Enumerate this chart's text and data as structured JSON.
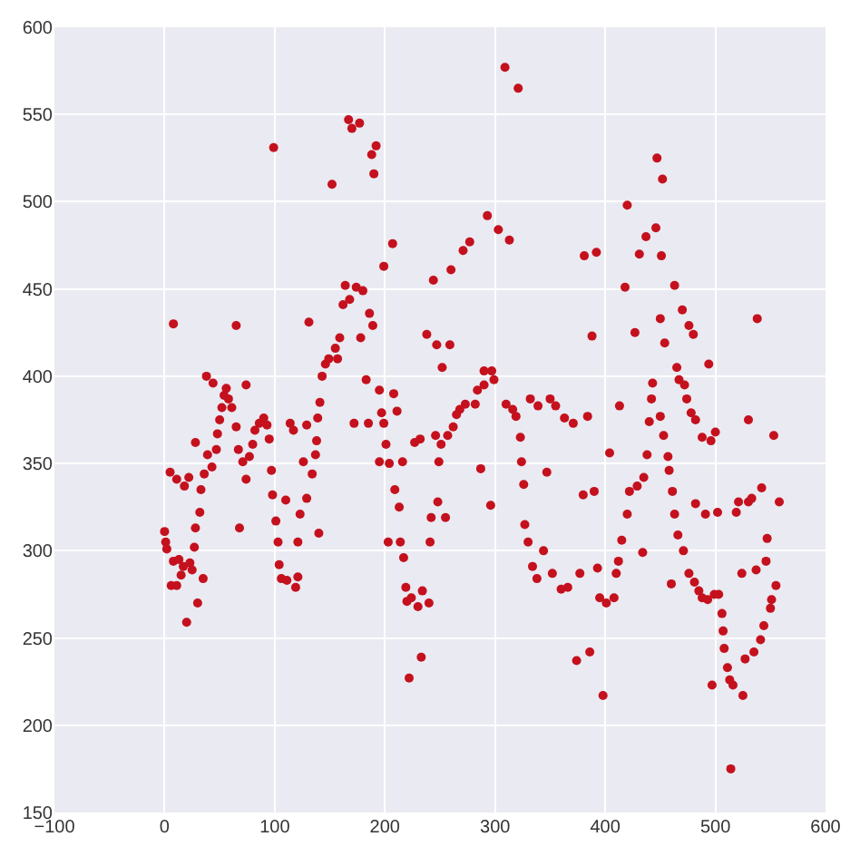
{
  "chart_data": {
    "type": "scatter",
    "x": [
      0,
      1,
      2,
      5,
      6,
      8,
      8,
      11,
      11,
      13,
      15,
      17,
      18,
      20,
      22,
      23,
      25,
      27,
      28,
      28,
      30,
      32,
      33,
      35,
      36,
      38,
      39,
      43,
      44,
      47,
      48,
      50,
      52,
      54,
      56,
      58,
      61,
      65,
      65,
      68,
      67,
      71,
      74,
      74,
      77,
      80,
      82,
      86,
      90,
      93,
      95,
      97,
      98,
      99,
      101,
      103,
      104,
      106,
      110,
      111,
      114,
      117,
      119,
      121,
      121,
      123,
      126,
      129,
      129,
      131,
      134,
      137,
      138,
      139,
      140,
      141,
      143,
      146,
      149,
      152,
      155,
      157,
      159,
      162,
      164,
      167,
      168,
      170,
      172,
      174,
      177,
      178,
      180,
      183,
      185,
      186,
      188,
      189,
      190,
      192,
      195,
      195,
      197,
      199,
      199,
      201,
      203,
      204,
      207,
      208,
      209,
      211,
      213,
      214,
      216,
      217,
      219,
      220,
      222,
      224,
      227,
      230,
      232,
      233,
      234,
      238,
      240,
      241,
      242,
      244,
      246,
      247,
      248,
      249,
      251,
      252,
      255,
      257,
      259,
      260,
      262,
      265,
      268,
      271,
      273,
      277,
      282,
      284,
      287,
      290,
      290,
      293,
      296,
      297,
      299,
      303,
      309,
      310,
      313,
      316,
      319,
      321,
      323,
      324,
      326,
      327,
      330,
      332,
      334,
      338,
      339,
      344,
      347,
      350,
      352,
      355,
      360,
      363,
      366,
      371,
      374,
      377,
      380,
      381,
      384,
      386,
      388,
      390,
      392,
      393,
      395,
      398,
      401,
      404,
      408,
      410,
      412,
      413,
      415,
      418,
      420,
      420,
      422,
      427,
      429,
      431,
      434,
      435,
      437,
      438,
      440,
      442,
      443,
      446,
      447,
      450,
      450,
      451,
      452,
      453,
      454,
      457,
      458,
      460,
      461,
      463,
      463,
      465,
      466,
      467,
      470,
      471,
      472,
      474,
      476,
      476,
      478,
      480,
      481,
      482,
      482,
      485,
      488,
      488,
      491,
      493,
      494,
      496,
      497,
      499,
      500,
      502,
      503,
      506,
      507,
      508,
      511,
      513,
      514,
      516,
      519,
      521,
      524,
      525,
      527,
      530,
      530,
      533,
      535,
      537,
      538,
      541,
      542,
      544,
      546,
      547,
      550,
      551,
      553,
      555,
      558
    ],
    "values": [
      311,
      305,
      301,
      345,
      280,
      294,
      430,
      280,
      341,
      295,
      286,
      291,
      337,
      259,
      342,
      293,
      289,
      302,
      362,
      313,
      270,
      322,
      335,
      284,
      344,
      400,
      355,
      348,
      396,
      358,
      367,
      375,
      382,
      389,
      393,
      387,
      382,
      371,
      429,
      313,
      358,
      351,
      341,
      395,
      354,
      361,
      369,
      373,
      376,
      372,
      364,
      346,
      332,
      531,
      317,
      305,
      292,
      284,
      329,
      283,
      373,
      369,
      279,
      285,
      305,
      321,
      351,
      330,
      372,
      431,
      344,
      355,
      363,
      376,
      310,
      385,
      400,
      407,
      410,
      510,
      416,
      410,
      422,
      441,
      452,
      547,
      444,
      542,
      373,
      451,
      545,
      422,
      449,
      398,
      373,
      436,
      527,
      429,
      516,
      532,
      351,
      392,
      379,
      463,
      373,
      361,
      305,
      350,
      476,
      390,
      335,
      380,
      325,
      305,
      351,
      296,
      279,
      271,
      227,
      273,
      362,
      268,
      364,
      239,
      277,
      424,
      270,
      305,
      319,
      455,
      366,
      418,
      328,
      351,
      361,
      405,
      319,
      366,
      418,
      461,
      371,
      378,
      381,
      472,
      384,
      477,
      384,
      392,
      347,
      395,
      403,
      492,
      326,
      403,
      398,
      484,
      577,
      384,
      478,
      381,
      377,
      565,
      365,
      351,
      338,
      315,
      305,
      387,
      291,
      284,
      383,
      300,
      345,
      387,
      287,
      383,
      278,
      376,
      279,
      373,
      237,
      287,
      332,
      469,
      377,
      242,
      423,
      334,
      471,
      290,
      273,
      217,
      270,
      356,
      273,
      287,
      294,
      383,
      306,
      451,
      321,
      498,
      334,
      425,
      337,
      470,
      299,
      342,
      480,
      355,
      374,
      387,
      396,
      485,
      525,
      433,
      377,
      469,
      513,
      366,
      419,
      354,
      346,
      281,
      334,
      321,
      452,
      405,
      309,
      398,
      438,
      300,
      395,
      387,
      429,
      287,
      379,
      424,
      282,
      375,
      327,
      277,
      365,
      273,
      321,
      272,
      407,
      363,
      223,
      275,
      368,
      322,
      275,
      264,
      254,
      244,
      233,
      226,
      175,
      223,
      322,
      328,
      287,
      217,
      238,
      328,
      375,
      330,
      242,
      289,
      433,
      249,
      336,
      257,
      294,
      307,
      267,
      272,
      366,
      280,
      328
    ],
    "color": "#c4111d",
    "marker": "circle",
    "grid": true,
    "xlim": [
      -100,
      600
    ],
    "xticks": [
      -100,
      0,
      100,
      200,
      300,
      400,
      500,
      600
    ],
    "ylim": [
      150,
      600
    ],
    "yticks": [
      150,
      200,
      250,
      300,
      350,
      400,
      450,
      500,
      550,
      600
    ]
  }
}
